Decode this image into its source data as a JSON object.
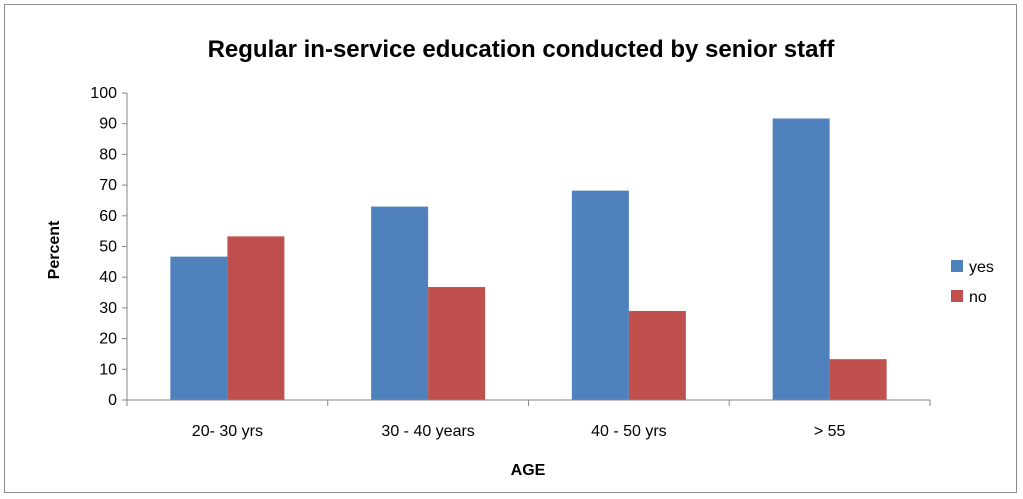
{
  "chart_data": {
    "type": "bar",
    "title": "Regular in-service education conducted by senior staff",
    "xlabel": "AGE",
    "ylabel": "Percent",
    "categories": [
      "20- 30 yrs",
      "30 - 40 years",
      "40 - 50 yrs",
      "> 55"
    ],
    "series": [
      {
        "name": "yes",
        "color": "#4f81bd",
        "values": [
          46.7,
          63.0,
          68.2,
          91.7
        ]
      },
      {
        "name": "no",
        "color": "#c0504d",
        "values": [
          53.3,
          36.8,
          29.0,
          13.3
        ]
      }
    ],
    "ylim": [
      0,
      100
    ],
    "yticks": [
      0,
      10,
      20,
      30,
      40,
      50,
      60,
      70,
      80,
      90,
      100
    ],
    "grid": false,
    "legend_position": "right"
  }
}
